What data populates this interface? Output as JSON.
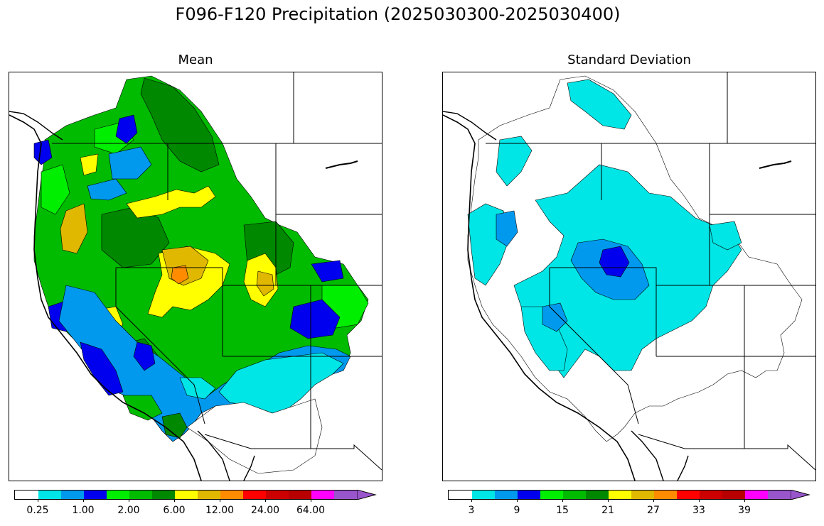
{
  "figure": {
    "title": "F096-F120 Precipitation (2025030300-2025030400)"
  },
  "panels": {
    "mean": {
      "title": "Mean",
      "colorbar": {
        "colors": [
          "#ffffff",
          "#00e5e5",
          "#0099ee",
          "#0000ee",
          "#00ee00",
          "#00bb00",
          "#008800",
          "#ffff00",
          "#e0b800",
          "#ff8c00",
          "#ff0000",
          "#cc0000",
          "#b80000",
          "#ff00ff",
          "#9955cc"
        ],
        "tick_labels": [
          "0.25",
          "1.00",
          "2.00",
          "6.00",
          "12.00",
          "24.00",
          "64.00"
        ]
      }
    },
    "stddev": {
      "title": "Standard Deviation",
      "colorbar": {
        "colors": [
          "#ffffff",
          "#00e5e5",
          "#0099ee",
          "#0000ee",
          "#00ee00",
          "#00bb00",
          "#008800",
          "#ffff00",
          "#e0b800",
          "#ff8c00",
          "#ff0000",
          "#cc0000",
          "#b80000",
          "#ff00ff",
          "#9955cc"
        ],
        "tick_labels": [
          "3",
          "9",
          "15",
          "21",
          "27",
          "33",
          "39"
        ]
      }
    }
  }
}
